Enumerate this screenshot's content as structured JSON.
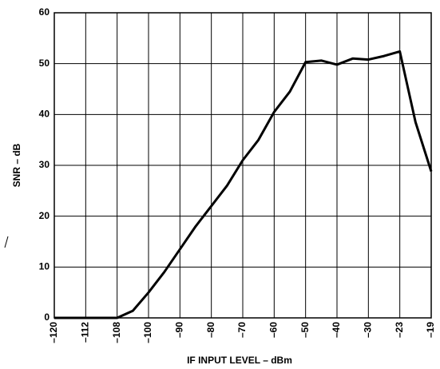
{
  "chart_data": {
    "type": "line",
    "xlabel": "IF INPUT LEVEL – dBm",
    "ylabel": "SNR – dB",
    "categories": [
      "–120",
      null,
      "–112",
      null,
      "–108",
      null,
      "–100",
      null,
      "–90",
      null,
      "–80",
      null,
      "–70",
      null,
      "–60",
      null,
      "–50",
      null,
      "–40",
      null,
      "–30",
      null,
      "–23",
      null,
      "–19"
    ],
    "values": [
      0,
      0,
      0,
      0,
      0,
      1.4,
      5,
      9,
      13.5,
      18,
      22,
      26,
      31,
      35,
      40.5,
      44.5,
      50.3,
      50.6,
      49.8,
      51,
      50.8,
      51.5,
      52.4,
      38.5,
      28.8
    ],
    "color": "#000000",
    "ylim": [
      0,
      60
    ],
    "yticks": [
      0,
      10,
      20,
      30,
      40,
      50,
      60
    ],
    "grid": true
  }
}
